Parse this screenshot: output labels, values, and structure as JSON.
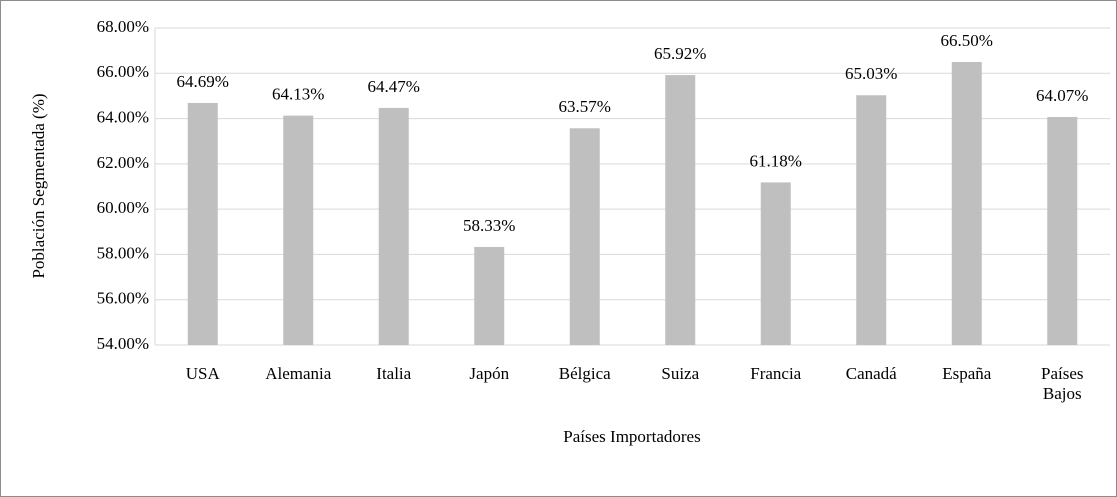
{
  "chart_data": {
    "type": "bar",
    "x_label": "Países Importadores",
    "y_label": "Población Segmentada (%)",
    "categories": [
      "USA",
      "Alemania",
      "Italia",
      "Japón",
      "Bélgica",
      "Suiza",
      "Francia",
      "Canadá",
      "España",
      "Países Bajos"
    ],
    "values": [
      64.69,
      64.13,
      64.47,
      58.33,
      63.57,
      65.92,
      61.18,
      65.03,
      66.5,
      64.07
    ],
    "value_labels": [
      "64.69%",
      "64.13%",
      "64.47%",
      "58.33%",
      "63.57%",
      "65.92%",
      "61.18%",
      "65.03%",
      "66.50%",
      "64.07%"
    ],
    "color": "#bfbfbf",
    "ylim": [
      54,
      68
    ],
    "yticks": [
      {
        "value": 54,
        "label": "54.00%"
      },
      {
        "value": 56,
        "label": "56.00%"
      },
      {
        "value": 58,
        "label": "58.00%"
      },
      {
        "value": 60,
        "label": "60.00%"
      },
      {
        "value": 62,
        "label": "62.00%"
      },
      {
        "value": 64,
        "label": "64.00%"
      },
      {
        "value": 66,
        "label": "66.00%"
      },
      {
        "value": 68,
        "label": "68.00%"
      }
    ],
    "grid": true
  }
}
